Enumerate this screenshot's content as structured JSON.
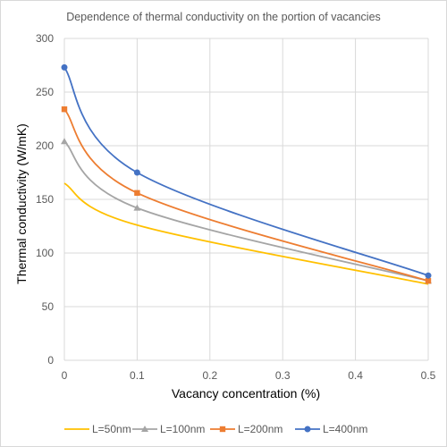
{
  "chart_data": {
    "type": "line",
    "title": "Dependence of thermal conductivity on the portion of vacancies",
    "xlabel": "Vacancy concentration (%)",
    "ylabel": "Thermal conductivity (W/mK)",
    "x": [
      0,
      0.1,
      0.5
    ],
    "xlim": [
      0,
      0.5
    ],
    "ylim": [
      0,
      300
    ],
    "xticks": [
      "0",
      "0.1",
      "0.2",
      "0.3",
      "0.4",
      "0.5"
    ],
    "yticks": [
      "0",
      "50",
      "100",
      "150",
      "200",
      "250",
      "300"
    ],
    "grid": true,
    "legend_position": "bottom",
    "series": [
      {
        "name": "L=50nm",
        "values": [
          165,
          126,
          71
        ],
        "color": "#ffc000",
        "marker": "none"
      },
      {
        "name": "L=100nm",
        "values": [
          204,
          142,
          74
        ],
        "color": "#a5a5a5",
        "marker": "triangle"
      },
      {
        "name": "L=200nm",
        "values": [
          234,
          156,
          74
        ],
        "color": "#ed7d31",
        "marker": "square"
      },
      {
        "name": "L=400nm",
        "values": [
          273,
          175,
          79
        ],
        "color": "#4472c4",
        "marker": "circle"
      }
    ]
  }
}
